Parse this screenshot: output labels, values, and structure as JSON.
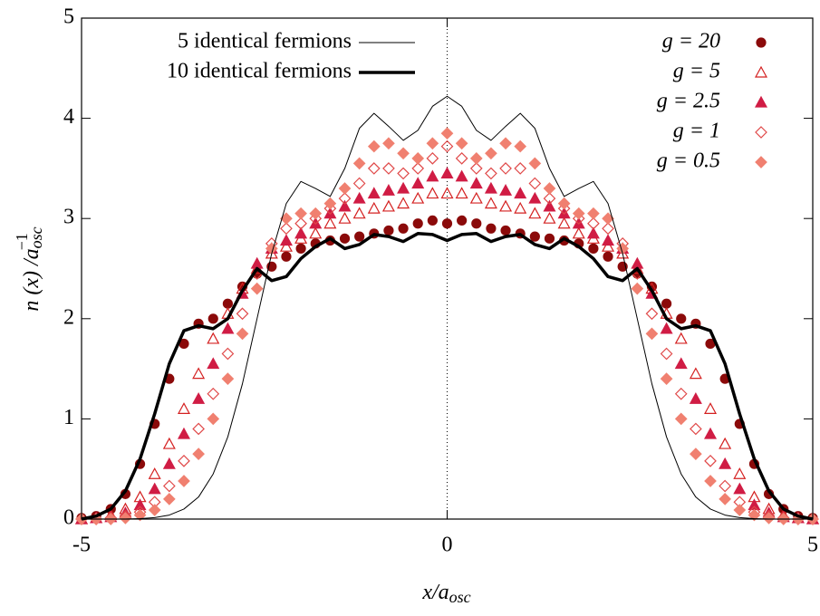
{
  "chart_data": {
    "type": "line",
    "xlabel": {
      "main": "x/a",
      "sub": "osc"
    },
    "ylabel": {
      "main": "n (x) /a",
      "sub": "osc",
      "sup": "−1"
    },
    "xlim": [
      -5,
      5
    ],
    "ylim": [
      0,
      5
    ],
    "xticks": [
      -5,
      0,
      5
    ],
    "yticks": [
      0,
      1,
      2,
      3,
      4,
      5
    ],
    "vlines": [
      0
    ],
    "x": [
      -5,
      -4.8,
      -4.6,
      -4.4,
      -4.2,
      -4,
      -3.8,
      -3.6,
      -3.4,
      -3.2,
      -3,
      -2.8,
      -2.6,
      -2.4,
      -2.2,
      -2,
      -1.8,
      -1.6,
      -1.4,
      -1.2,
      -1,
      -0.8,
      -0.6,
      -0.4,
      -0.2,
      0,
      0.2,
      0.4,
      0.6,
      0.8,
      1,
      1.2,
      1.4,
      1.6,
      1.8,
      2,
      2.2,
      2.4,
      2.6,
      2.8,
      3,
      3.2,
      3.4,
      3.6,
      3.8,
      4,
      4.2,
      4.4,
      4.6,
      4.8,
      5
    ],
    "series": [
      {
        "name": "g = 20",
        "style": "points",
        "marker": "circle",
        "filled": true,
        "color": "#8b0a0a",
        "values": [
          0.01,
          0.03,
          0.1,
          0.25,
          0.55,
          0.95,
          1.4,
          1.75,
          1.95,
          2.0,
          2.15,
          2.32,
          2.45,
          2.52,
          2.62,
          2.7,
          2.75,
          2.78,
          2.8,
          2.82,
          2.85,
          2.88,
          2.9,
          2.95,
          2.98,
          2.95,
          2.98,
          2.95,
          2.9,
          2.88,
          2.85,
          2.82,
          2.8,
          2.78,
          2.75,
          2.7,
          2.62,
          2.52,
          2.45,
          2.32,
          2.15,
          2.0,
          1.95,
          1.75,
          1.4,
          0.95,
          0.55,
          0.25,
          0.1,
          0.03,
          0.01
        ]
      },
      {
        "name": "g = 5",
        "style": "points",
        "marker": "triangle",
        "filled": false,
        "color": "#d42020",
        "values": [
          0,
          0.01,
          0.04,
          0.1,
          0.22,
          0.45,
          0.75,
          1.1,
          1.45,
          1.8,
          2.05,
          2.3,
          2.5,
          2.65,
          2.72,
          2.8,
          2.85,
          2.95,
          3.0,
          3.05,
          3.1,
          3.12,
          3.15,
          3.2,
          3.25,
          3.25,
          3.25,
          3.2,
          3.15,
          3.12,
          3.1,
          3.05,
          3.0,
          2.95,
          2.85,
          2.8,
          2.72,
          2.65,
          2.5,
          2.3,
          2.05,
          1.8,
          1.45,
          1.1,
          0.75,
          0.45,
          0.22,
          0.1,
          0.04,
          0.01,
          0
        ]
      },
      {
        "name": "g = 2.5",
        "style": "points",
        "marker": "triangle",
        "filled": true,
        "color": "#d01c44",
        "values": [
          0,
          0.01,
          0.02,
          0.06,
          0.14,
          0.3,
          0.55,
          0.85,
          1.2,
          1.55,
          1.9,
          2.25,
          2.55,
          2.7,
          2.78,
          2.85,
          2.95,
          3.05,
          3.12,
          3.2,
          3.25,
          3.28,
          3.3,
          3.35,
          3.42,
          3.45,
          3.42,
          3.35,
          3.3,
          3.28,
          3.25,
          3.2,
          3.12,
          3.05,
          2.95,
          2.85,
          2.78,
          2.7,
          2.55,
          2.25,
          1.9,
          1.55,
          1.2,
          0.85,
          0.55,
          0.3,
          0.14,
          0.06,
          0.02,
          0.01,
          0
        ]
      },
      {
        "name": "g = 1",
        "style": "points",
        "marker": "diamond",
        "filled": false,
        "color": "#e04848",
        "values": [
          0,
          0,
          0.01,
          0.03,
          0.07,
          0.17,
          0.33,
          0.58,
          0.9,
          1.25,
          1.65,
          2.05,
          2.45,
          2.75,
          2.9,
          2.95,
          3.0,
          3.1,
          3.2,
          3.35,
          3.5,
          3.5,
          3.45,
          3.5,
          3.6,
          3.72,
          3.6,
          3.5,
          3.45,
          3.5,
          3.5,
          3.35,
          3.2,
          3.1,
          3.0,
          2.95,
          2.9,
          2.75,
          2.45,
          2.05,
          1.65,
          1.25,
          0.9,
          0.58,
          0.33,
          0.17,
          0.07,
          0.03,
          0.01,
          0,
          0
        ]
      },
      {
        "name": "g = 0.5",
        "style": "points",
        "marker": "diamond",
        "filled": true,
        "color": "#f08070",
        "values": [
          0,
          0,
          0,
          0.01,
          0.04,
          0.09,
          0.2,
          0.38,
          0.65,
          1.0,
          1.4,
          1.85,
          2.3,
          2.7,
          3.0,
          3.05,
          3.05,
          3.15,
          3.3,
          3.55,
          3.72,
          3.75,
          3.65,
          3.6,
          3.75,
          3.85,
          3.75,
          3.6,
          3.65,
          3.75,
          3.72,
          3.55,
          3.3,
          3.15,
          3.05,
          3.05,
          3.0,
          2.7,
          2.3,
          1.85,
          1.4,
          1.0,
          0.65,
          0.38,
          0.2,
          0.09,
          0.04,
          0.01,
          0,
          0,
          0
        ]
      },
      {
        "name": "5 identical fermions",
        "style": "line",
        "width": 1,
        "color": "#000000",
        "values": [
          0,
          0,
          0,
          0,
          0.005,
          0.015,
          0.04,
          0.1,
          0.22,
          0.45,
          0.82,
          1.35,
          2.0,
          2.65,
          3.15,
          3.37,
          3.3,
          3.22,
          3.5,
          3.9,
          4.05,
          3.92,
          3.78,
          3.88,
          4.12,
          4.22,
          4.12,
          3.88,
          3.78,
          3.92,
          4.05,
          3.9,
          3.5,
          3.22,
          3.3,
          3.37,
          3.15,
          2.65,
          2.0,
          1.35,
          0.82,
          0.45,
          0.22,
          0.1,
          0.04,
          0.015,
          0.005,
          0,
          0,
          0,
          0
        ]
      },
      {
        "name": "10 identical fermions",
        "style": "line",
        "width": 3.5,
        "color": "#000000",
        "values": [
          0,
          0.03,
          0.1,
          0.28,
          0.6,
          1.05,
          1.55,
          1.88,
          1.93,
          1.9,
          2.0,
          2.28,
          2.5,
          2.38,
          2.42,
          2.6,
          2.72,
          2.8,
          2.7,
          2.74,
          2.84,
          2.82,
          2.77,
          2.85,
          2.84,
          2.78,
          2.84,
          2.85,
          2.77,
          2.82,
          2.84,
          2.74,
          2.7,
          2.8,
          2.72,
          2.6,
          2.42,
          2.38,
          2.5,
          2.28,
          2.0,
          1.9,
          1.93,
          1.88,
          1.55,
          1.05,
          0.6,
          0.28,
          0.1,
          0.03,
          0
        ]
      }
    ]
  }
}
